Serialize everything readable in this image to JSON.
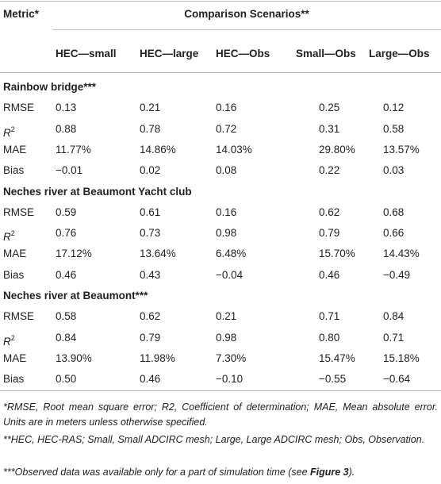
{
  "table": {
    "header": {
      "metric": "Metric*",
      "group": "Comparison Scenarios**",
      "columns": [
        "HEC—small",
        "HEC—large",
        "HEC—Obs",
        "Small—Obs",
        "Large—Obs"
      ]
    },
    "sections": [
      {
        "title": "Rainbow bridge***",
        "rows": [
          {
            "metric": "RMSE",
            "values": [
              "0.13",
              "0.21",
              "0.16",
              "0.25",
              "0.12"
            ]
          },
          {
            "metric": {
              "base": "R",
              "sup": "2"
            },
            "values": [
              "0.88",
              "0.78",
              "0.72",
              "0.31",
              "0.58"
            ]
          },
          {
            "metric": "MAE",
            "values": [
              "11.77%",
              "14.86%",
              "14.03%",
              "29.80%",
              "13.57%"
            ]
          },
          {
            "metric": "Bias",
            "values": [
              "−0.01",
              "0.02",
              "0.08",
              "0.22",
              "0.03"
            ]
          }
        ]
      },
      {
        "title": "Neches river at Beaumont Yacht club",
        "rows": [
          {
            "metric": "RMSE",
            "values": [
              "0.59",
              "0.61",
              "0.16",
              "0.62",
              "0.68"
            ]
          },
          {
            "metric": {
              "base": "R",
              "sup": "2"
            },
            "values": [
              "0.76",
              "0.73",
              "0.98",
              "0.79",
              "0.66"
            ]
          },
          {
            "metric": "MAE",
            "values": [
              "17.12%",
              "13.64%",
              "6.48%",
              "15.70%",
              "14.43%"
            ]
          },
          {
            "metric": "Bias",
            "values": [
              "0.46",
              "0.43",
              "−0.04",
              "0.46",
              "−0.49"
            ]
          }
        ]
      },
      {
        "title": "Neches river at Beaumont***",
        "rows": [
          {
            "metric": "RMSE",
            "values": [
              "0.58",
              "0.62",
              "0.21",
              "0.71",
              "0.84"
            ]
          },
          {
            "metric": {
              "base": "R",
              "sup": "2"
            },
            "values": [
              "0.84",
              "0.79",
              "0.98",
              "0.80",
              "0.71"
            ]
          },
          {
            "metric": "MAE",
            "values": [
              "13.90%",
              "11.98%",
              "7.30%",
              "15.47%",
              "15.18%"
            ]
          },
          {
            "metric": "Bias",
            "values": [
              "0.50",
              "0.46",
              "−0.10",
              "−0.55",
              "−0.64"
            ]
          }
        ]
      }
    ]
  },
  "footnotes": [
    {
      "text": "*RMSE, Root mean square error; R2, Coefficient of determination; MAE, Mean absolute error. Units are in meters unless otherwise specified."
    },
    {
      "text": "**HEC, HEC-RAS; Small, Small ADCIRC mesh; Large, Large ADCIRC mesh; Obs, Observation."
    },
    {
      "text": "***Observed data was available only for a part of simulation time (see ",
      "bold": "Figure 3",
      "end": ")."
    }
  ]
}
